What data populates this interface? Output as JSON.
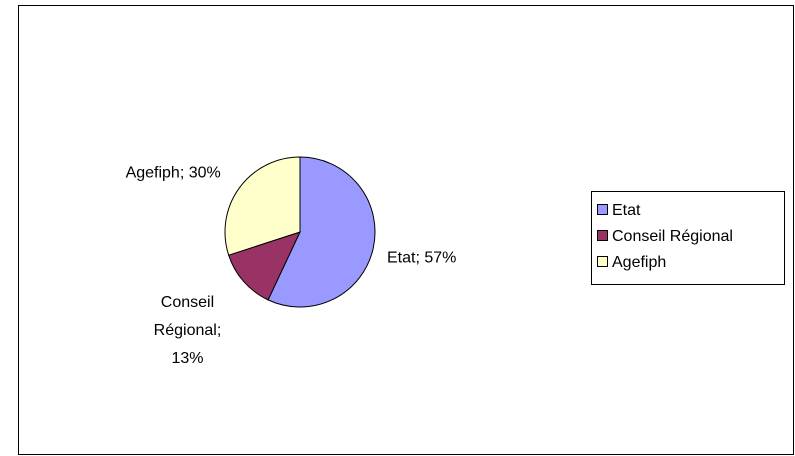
{
  "chart_data": {
    "type": "pie",
    "categories": [
      "Etat",
      "Conseil Régional",
      "Agefiph"
    ],
    "values": [
      57,
      13,
      30
    ],
    "value_labels": [
      "Etat; 57%",
      "Conseil Régional; 13%",
      "Agefiph; 30%"
    ],
    "colors": [
      "#9999ff",
      "#993366",
      "#ffffcc"
    ],
    "legend": "right"
  }
}
